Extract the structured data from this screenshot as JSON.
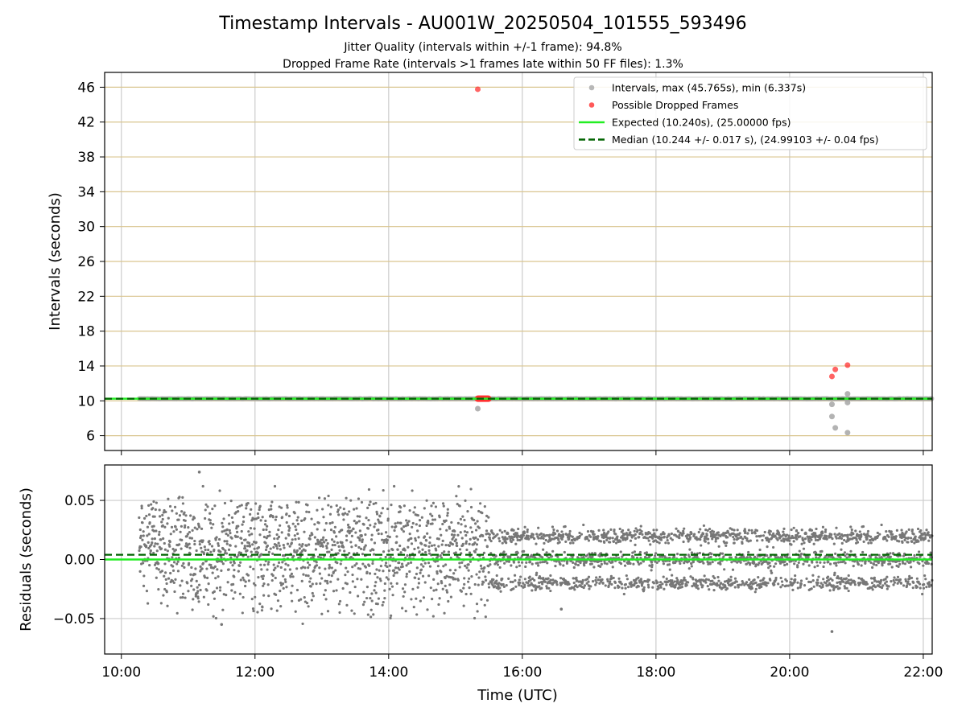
{
  "chart_data": {
    "title": "Timestamp Intervals - AU001W_20250504_101555_593496",
    "subtitle_1": "Jitter Quality (intervals within +/-1 frame): 94.8%",
    "subtitle_2": "Dropped Frame Rate (intervals >1 frames late within 50 FF files): 1.3%",
    "xlabel": "Time (UTC)",
    "x_range": [
      "09:45",
      "22:08"
    ],
    "x_ticks": [
      "10:00",
      "12:00",
      "14:00",
      "16:00",
      "18:00",
      "20:00",
      "22:00"
    ],
    "colors": {
      "interval_points": "#a6a6a6",
      "dropped_points": "#ff3030",
      "expected_line": "#22ee22",
      "median_line": "#006400",
      "residual_points": "#777777",
      "hgrid_top": "#d9c58f",
      "grid": "#cccccc"
    },
    "panels": [
      {
        "type": "scatter",
        "ylabel": "Intervals (seconds)",
        "ylim": [
          4.3,
          47.7
        ],
        "y_ticks": [
          6,
          10,
          14,
          18,
          22,
          26,
          30,
          34,
          38,
          42,
          46
        ],
        "legend_position": "top-right",
        "legend": {
          "intervals": "Intervals, max (45.765s), min (6.337s)",
          "dropped": "Possible Dropped Frames",
          "expected": "Expected (10.240s), (25.00000 fps)",
          "median": "Median (10.244 +/- 0.017 s), (24.99103 +/- 0.04 fps)"
        },
        "expected_value": 10.24,
        "median_value": 10.244,
        "interval_band": {
          "from": "10:16",
          "to": "22:08",
          "center": 10.244,
          "spread": 0.03
        },
        "interval_outliers": [
          {
            "x": "15:20",
            "y": 9.1
          },
          {
            "x": "20:38",
            "y": 9.6
          },
          {
            "x": "20:38",
            "y": 8.2
          },
          {
            "x": "20:41",
            "y": 6.9
          },
          {
            "x": "20:52",
            "y": 6.34
          },
          {
            "x": "20:52",
            "y": 10.8
          },
          {
            "x": "20:52",
            "y": 9.8
          }
        ],
        "dropped_frames": [
          {
            "x": "15:20",
            "y": 45.765
          },
          {
            "x": "20:38",
            "y": 12.8
          },
          {
            "x": "20:41",
            "y": 13.6
          },
          {
            "x": "20:52",
            "y": 14.1
          }
        ],
        "dropped_cluster": {
          "from": "15:20",
          "to": "15:30",
          "y": 10.24
        }
      },
      {
        "type": "scatter",
        "ylabel": "Residuals (seconds)",
        "ylim": [
          -0.08,
          0.08
        ],
        "y_ticks": [
          0.05,
          0.0,
          -0.05
        ],
        "y_tick_labels": [
          "0.05",
          "0.00",
          "−0.05"
        ],
        "expected_value": 0.0,
        "median_value": 0.004,
        "residual_regimes": [
          {
            "from": "10:16",
            "to": "15:30",
            "levels": [
              0.01
            ],
            "spread": 0.025
          },
          {
            "from": "15:30",
            "to": "22:08",
            "levels": [
              0.02,
              0.0,
              -0.02
            ],
            "spread": 0.003
          }
        ],
        "residual_outliers": [
          {
            "x": "11:10",
            "y": 0.074
          },
          {
            "x": "11:30",
            "y": -0.055
          },
          {
            "x": "16:35",
            "y": -0.042
          },
          {
            "x": "20:38",
            "y": -0.061
          }
        ]
      }
    ]
  }
}
